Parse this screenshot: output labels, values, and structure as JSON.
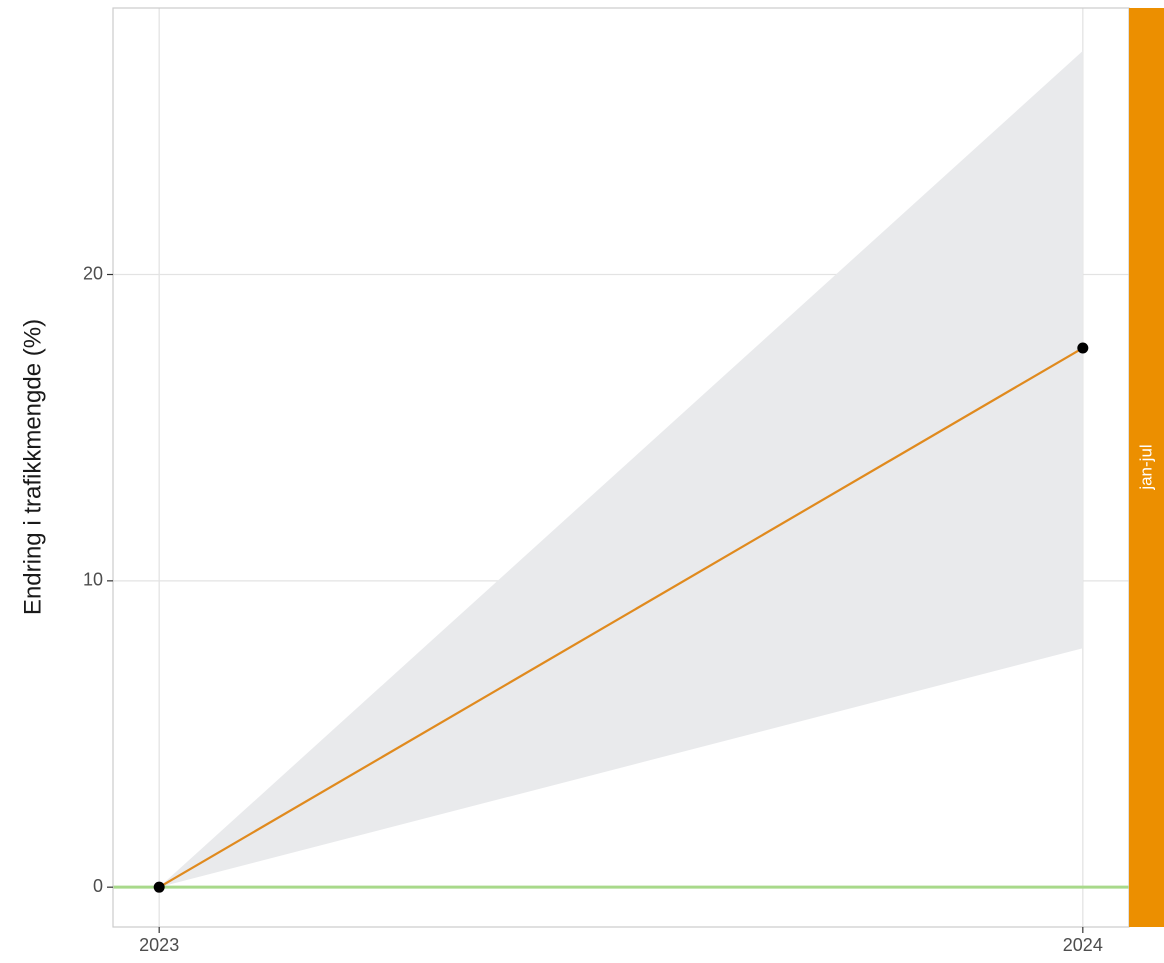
{
  "chart_data": {
    "type": "line",
    "title": "",
    "xlabel": "",
    "ylabel": "Endring i trafikkmengde (%)",
    "x": [
      "2023",
      "2024"
    ],
    "xlim": [
      2022.95,
      2024.05
    ],
    "ylim": [
      -1.3,
      28.7
    ],
    "y_ticks": [
      0,
      10,
      20
    ],
    "grid": true,
    "series": [
      {
        "values": [
          0,
          17.6
        ],
        "ci_lower": [
          0,
          7.8
        ],
        "ci_upper": [
          0,
          27.3
        ],
        "line_color": "#E08A1E",
        "point_color": "#000000"
      }
    ],
    "reference_line": {
      "y": 0,
      "color": "#A8D98A"
    },
    "ribbon_color": "#E9EAEC",
    "facet_label": "jan-jul",
    "facet_strip_color": "#EC8F00"
  }
}
